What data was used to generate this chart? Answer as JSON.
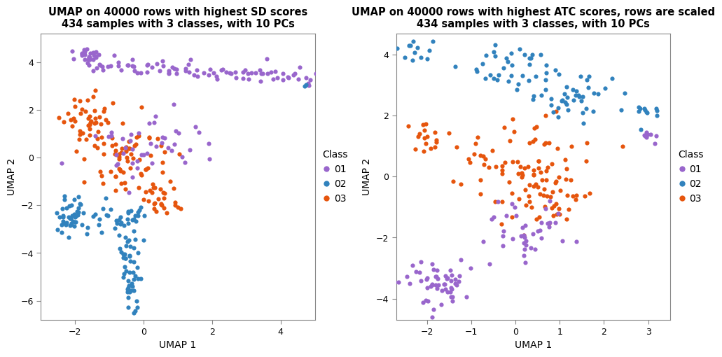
{
  "title1": "UMAP on 40000 rows with highest SD scores\n434 samples with 3 classes, with 10 PCs",
  "title2": "UMAP on 40000 rows with highest ATC scores, rows are scaled\n434 samples with 3 classes, with 10 PCs",
  "xlabel": "UMAP 1",
  "ylabel": "UMAP 2",
  "class_colors": {
    "01": "#9966CC",
    "02": "#3182BD",
    "03": "#E6550D"
  },
  "class_labels": [
    "01",
    "02",
    "03"
  ],
  "legend_title": "Class",
  "plot1_xlim": [
    -3.0,
    5.0
  ],
  "plot1_ylim": [
    -6.8,
    5.2
  ],
  "plot1_xticks": [
    -2,
    0,
    2,
    4
  ],
  "plot1_yticks": [
    -6,
    -4,
    -2,
    0,
    2,
    4
  ],
  "plot2_xlim": [
    -2.7,
    3.5
  ],
  "plot2_ylim": [
    -4.7,
    4.7
  ],
  "plot2_xticks": [
    -2,
    -1,
    0,
    1,
    2,
    3
  ],
  "plot2_yticks": [
    -4,
    -2,
    0,
    2,
    4
  ],
  "point_size": 20,
  "alpha": 1.0,
  "bg_color": "white",
  "title_fontsize": 10.5,
  "axis_fontsize": 10,
  "tick_fontsize": 9,
  "legend_fontsize": 10
}
